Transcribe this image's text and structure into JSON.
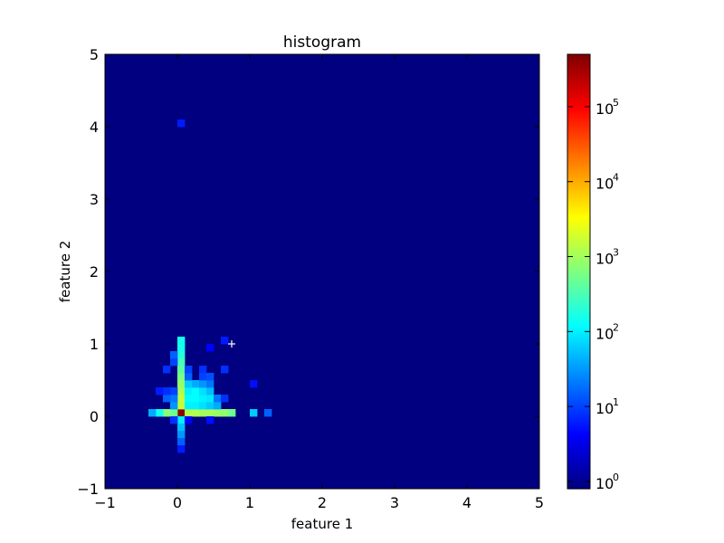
{
  "chart_data": {
    "type": "heatmap",
    "title": "histogram",
    "xlabel": "feature 1",
    "ylabel": "feature 2",
    "xlim": [
      -1,
      5
    ],
    "ylim": [
      -1,
      5
    ],
    "x_ticks": [
      "−1",
      "0",
      "1",
      "2",
      "3",
      "4",
      "5"
    ],
    "x_tick_values": [
      -1,
      0,
      1,
      2,
      3,
      4,
      5
    ],
    "y_ticks": [
      "−1",
      "0",
      "1",
      "2",
      "3",
      "4",
      "5"
    ],
    "y_tick_values": [
      -1,
      0,
      1,
      2,
      3,
      4,
      5
    ],
    "bin_size": 0.1,
    "colormap": "jet",
    "background_color": "#000080",
    "colorbar": {
      "scale": "log",
      "range": [
        0.8,
        500000
      ],
      "tick_values": [
        1,
        10,
        100,
        1000,
        10000,
        100000
      ],
      "tick_bases": [
        "10",
        "10",
        "10",
        "10",
        "10",
        "10"
      ],
      "tick_exponents": [
        "0",
        "1",
        "2",
        "3",
        "4",
        "5"
      ]
    },
    "bins": [
      {
        "x": 0.05,
        "y": 0.05,
        "count": 450000
      },
      {
        "x": 0.05,
        "y": 0.15,
        "count": 1500
      },
      {
        "x": 0.05,
        "y": 0.25,
        "count": 1500
      },
      {
        "x": 0.05,
        "y": 0.35,
        "count": 1200
      },
      {
        "x": 0.05,
        "y": 0.45,
        "count": 800
      },
      {
        "x": 0.05,
        "y": 0.55,
        "count": 600
      },
      {
        "x": 0.05,
        "y": 0.65,
        "count": 400
      },
      {
        "x": 0.05,
        "y": 0.75,
        "count": 300
      },
      {
        "x": 0.05,
        "y": 0.85,
        "count": 200
      },
      {
        "x": 0.05,
        "y": 0.95,
        "count": 150
      },
      {
        "x": 0.05,
        "y": 1.05,
        "count": 150
      },
      {
        "x": 0.05,
        "y": -0.05,
        "count": 100
      },
      {
        "x": 0.05,
        "y": -0.15,
        "count": 50
      },
      {
        "x": 0.05,
        "y": -0.25,
        "count": 30
      },
      {
        "x": 0.05,
        "y": -0.35,
        "count": 15
      },
      {
        "x": 0.05,
        "y": -0.45,
        "count": 6
      },
      {
        "x": 0.05,
        "y": 4.05,
        "count": 6
      },
      {
        "x": 0.15,
        "y": 0.05,
        "count": 1200
      },
      {
        "x": 0.25,
        "y": 0.05,
        "count": 1200
      },
      {
        "x": 0.35,
        "y": 0.05,
        "count": 1000
      },
      {
        "x": 0.45,
        "y": 0.05,
        "count": 1000
      },
      {
        "x": 0.55,
        "y": 0.05,
        "count": 900
      },
      {
        "x": 0.65,
        "y": 0.05,
        "count": 800
      },
      {
        "x": 0.75,
        "y": 0.05,
        "count": 500
      },
      {
        "x": -0.05,
        "y": 0.05,
        "count": 500
      },
      {
        "x": -0.15,
        "y": 0.05,
        "count": 700
      },
      {
        "x": -0.25,
        "y": 0.05,
        "count": 150
      },
      {
        "x": -0.35,
        "y": 0.05,
        "count": 40
      },
      {
        "x": 1.05,
        "y": 0.05,
        "count": 60
      },
      {
        "x": 1.25,
        "y": 0.05,
        "count": 15
      },
      {
        "x": 0.15,
        "y": 0.15,
        "count": 100
      },
      {
        "x": 0.25,
        "y": 0.15,
        "count": 100
      },
      {
        "x": 0.35,
        "y": 0.15,
        "count": 80
      },
      {
        "x": 0.45,
        "y": 0.15,
        "count": 60
      },
      {
        "x": 0.55,
        "y": 0.15,
        "count": 40
      },
      {
        "x": 0.15,
        "y": 0.25,
        "count": 120
      },
      {
        "x": 0.25,
        "y": 0.25,
        "count": 120
      },
      {
        "x": 0.35,
        "y": 0.25,
        "count": 100
      },
      {
        "x": 0.45,
        "y": 0.25,
        "count": 90
      },
      {
        "x": 0.55,
        "y": 0.25,
        "count": 20
      },
      {
        "x": 0.15,
        "y": 0.35,
        "count": 100
      },
      {
        "x": 0.25,
        "y": 0.35,
        "count": 120
      },
      {
        "x": 0.35,
        "y": 0.35,
        "count": 80
      },
      {
        "x": 0.45,
        "y": 0.35,
        "count": 50
      },
      {
        "x": 0.15,
        "y": 0.45,
        "count": 60
      },
      {
        "x": 0.25,
        "y": 0.45,
        "count": 40
      },
      {
        "x": 0.35,
        "y": 0.45,
        "count": 30
      },
      {
        "x": 0.45,
        "y": 0.45,
        "count": 20
      },
      {
        "x": 0.15,
        "y": 0.55,
        "count": 15
      },
      {
        "x": 0.35,
        "y": 0.55,
        "count": 10
      },
      {
        "x": 0.45,
        "y": 0.55,
        "count": 12
      },
      {
        "x": 0.15,
        "y": 0.65,
        "count": 10
      },
      {
        "x": 0.35,
        "y": 0.65,
        "count": 8
      },
      {
        "x": -0.05,
        "y": 0.15,
        "count": 30
      },
      {
        "x": -0.05,
        "y": 0.25,
        "count": 20
      },
      {
        "x": -0.05,
        "y": 0.35,
        "count": 10
      },
      {
        "x": -0.15,
        "y": 0.25,
        "count": 15
      },
      {
        "x": -0.15,
        "y": 0.35,
        "count": 8
      },
      {
        "x": -0.25,
        "y": 0.35,
        "count": 6
      },
      {
        "x": -0.15,
        "y": 0.65,
        "count": 8
      },
      {
        "x": -0.05,
        "y": 0.75,
        "count": 10
      },
      {
        "x": -0.05,
        "y": 0.85,
        "count": 15
      },
      {
        "x": 0.65,
        "y": 0.25,
        "count": 8
      },
      {
        "x": 0.45,
        "y": 0.95,
        "count": 4
      },
      {
        "x": 0.65,
        "y": 0.65,
        "count": 8
      },
      {
        "x": 0.65,
        "y": 1.05,
        "count": 6
      },
      {
        "x": 1.05,
        "y": 0.45,
        "count": 5
      },
      {
        "x": 0.45,
        "y": -0.05,
        "count": 5
      },
      {
        "x": -0.05,
        "y": -0.05,
        "count": 8
      },
      {
        "x": 0.15,
        "y": -0.05,
        "count": 4
      }
    ],
    "marker": {
      "x": 0.75,
      "y": 1.0,
      "symbol": "+",
      "color": "#ffffff"
    }
  }
}
